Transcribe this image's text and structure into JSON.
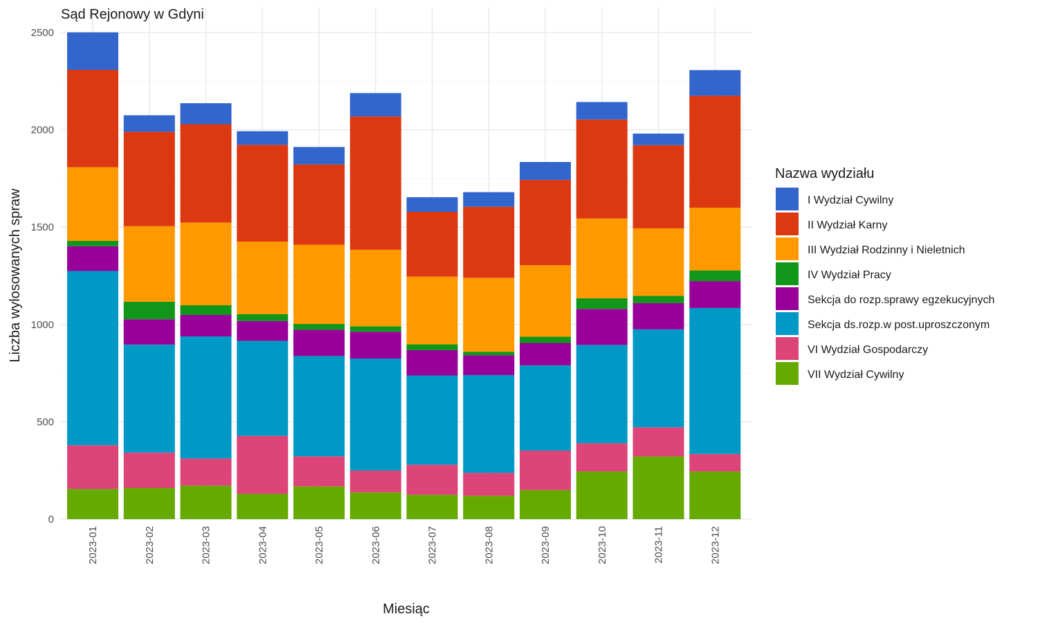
{
  "chart_data": {
    "type": "bar",
    "stacked": true,
    "title": "Sąd Rejonowy w Gdyni",
    "xlabel": "Miesiąc",
    "ylabel": "Liczba wylosowanych spraw",
    "ylim": [
      0,
      2500
    ],
    "yticks": [
      0,
      500,
      1000,
      1500,
      2000,
      2500
    ],
    "grid": true,
    "legend_title": "Nazwa wydziału",
    "legend_position": "right",
    "categories": [
      "2023-01",
      "2023-02",
      "2023-03",
      "2023-04",
      "2023-05",
      "2023-06",
      "2023-07",
      "2023-08",
      "2023-09",
      "2023-10",
      "2023-11",
      "2023-12"
    ],
    "series": [
      {
        "name": "VII Wydział Cywilny",
        "color": "#66AA00",
        "values": [
          155,
          160,
          172,
          130,
          168,
          138,
          125,
          120,
          150,
          245,
          322,
          245
        ]
      },
      {
        "name": "VI Wydział Gospodarczy",
        "color": "#DD4477",
        "values": [
          225,
          182,
          140,
          298,
          155,
          112,
          155,
          118,
          202,
          145,
          150,
          90
        ]
      },
      {
        "name": "Sekcja ds.rozp.w post.uproszczonym",
        "color": "#0099C6",
        "values": [
          895,
          555,
          627,
          488,
          515,
          575,
          458,
          502,
          438,
          505,
          503,
          750
        ]
      },
      {
        "name": "Sekcja do rozp.sprawy egzekucyjnych",
        "color": "#990099",
        "values": [
          127,
          130,
          110,
          102,
          135,
          138,
          130,
          102,
          115,
          185,
          135,
          138
        ]
      },
      {
        "name": "IV Wydział Pracy",
        "color": "#109618",
        "values": [
          28,
          90,
          50,
          35,
          30,
          28,
          30,
          18,
          32,
          55,
          37,
          55
        ]
      },
      {
        "name": "III Wydział Rodzinny i Nieletnich",
        "color": "#FF9900",
        "values": [
          378,
          388,
          425,
          373,
          407,
          393,
          348,
          380,
          368,
          410,
          347,
          322
        ]
      },
      {
        "name": "II Wydział Karny",
        "color": "#DC3912",
        "values": [
          500,
          485,
          505,
          497,
          412,
          685,
          333,
          365,
          438,
          508,
          427,
          575
        ]
      },
      {
        "name": "I Wydział Cywilny",
        "color": "#3366CC",
        "values": [
          193,
          85,
          108,
          70,
          90,
          120,
          75,
          75,
          92,
          90,
          60,
          132
        ]
      }
    ]
  }
}
